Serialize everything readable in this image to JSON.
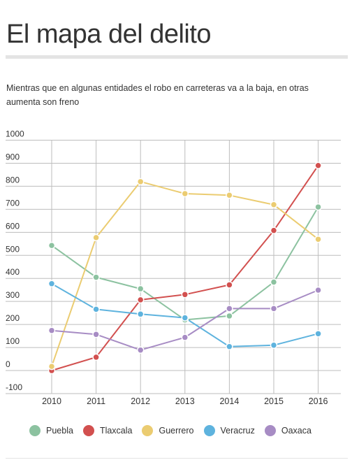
{
  "page": {
    "title": "El mapa del delito",
    "subtitle": "Mientras que en algunas entidades el robo en carreteras va a la baja, en otras aumenta son freno"
  },
  "chart_data": {
    "type": "line",
    "title": "",
    "xlabel": "",
    "ylabel": "",
    "x": [
      "2010",
      "2011",
      "2012",
      "2013",
      "2014",
      "2015",
      "2016"
    ],
    "y_ticks": [
      "1000",
      "900",
      "800",
      "700",
      "600",
      "500",
      "400",
      "300",
      "200",
      "100",
      "0",
      "-100"
    ],
    "ylim": [
      -100,
      1000
    ],
    "grid": true,
    "legend_position": "bottom",
    "series": [
      {
        "name": "Puebla",
        "color": "#8cc2a0",
        "values": [
          543,
          405,
          355,
          220,
          237,
          384,
          710
        ]
      },
      {
        "name": "Tlaxcala",
        "color": "#d2504f",
        "values": [
          0,
          58,
          307,
          330,
          372,
          608,
          890
        ]
      },
      {
        "name": "Guerrero",
        "color": "#ebcc71",
        "values": [
          18,
          577,
          820,
          768,
          761,
          720,
          570
        ]
      },
      {
        "name": "Veracruz",
        "color": "#5eb3de",
        "values": [
          377,
          266,
          245,
          229,
          104,
          110,
          160
        ]
      },
      {
        "name": "Oaxaca",
        "color": "#a78cc4",
        "values": [
          174,
          157,
          89,
          144,
          269,
          269,
          349
        ]
      }
    ]
  },
  "colors": {
    "grid": "#bdbdbd",
    "axis_text": "#333333",
    "title_rule": "#e4e4e4"
  }
}
